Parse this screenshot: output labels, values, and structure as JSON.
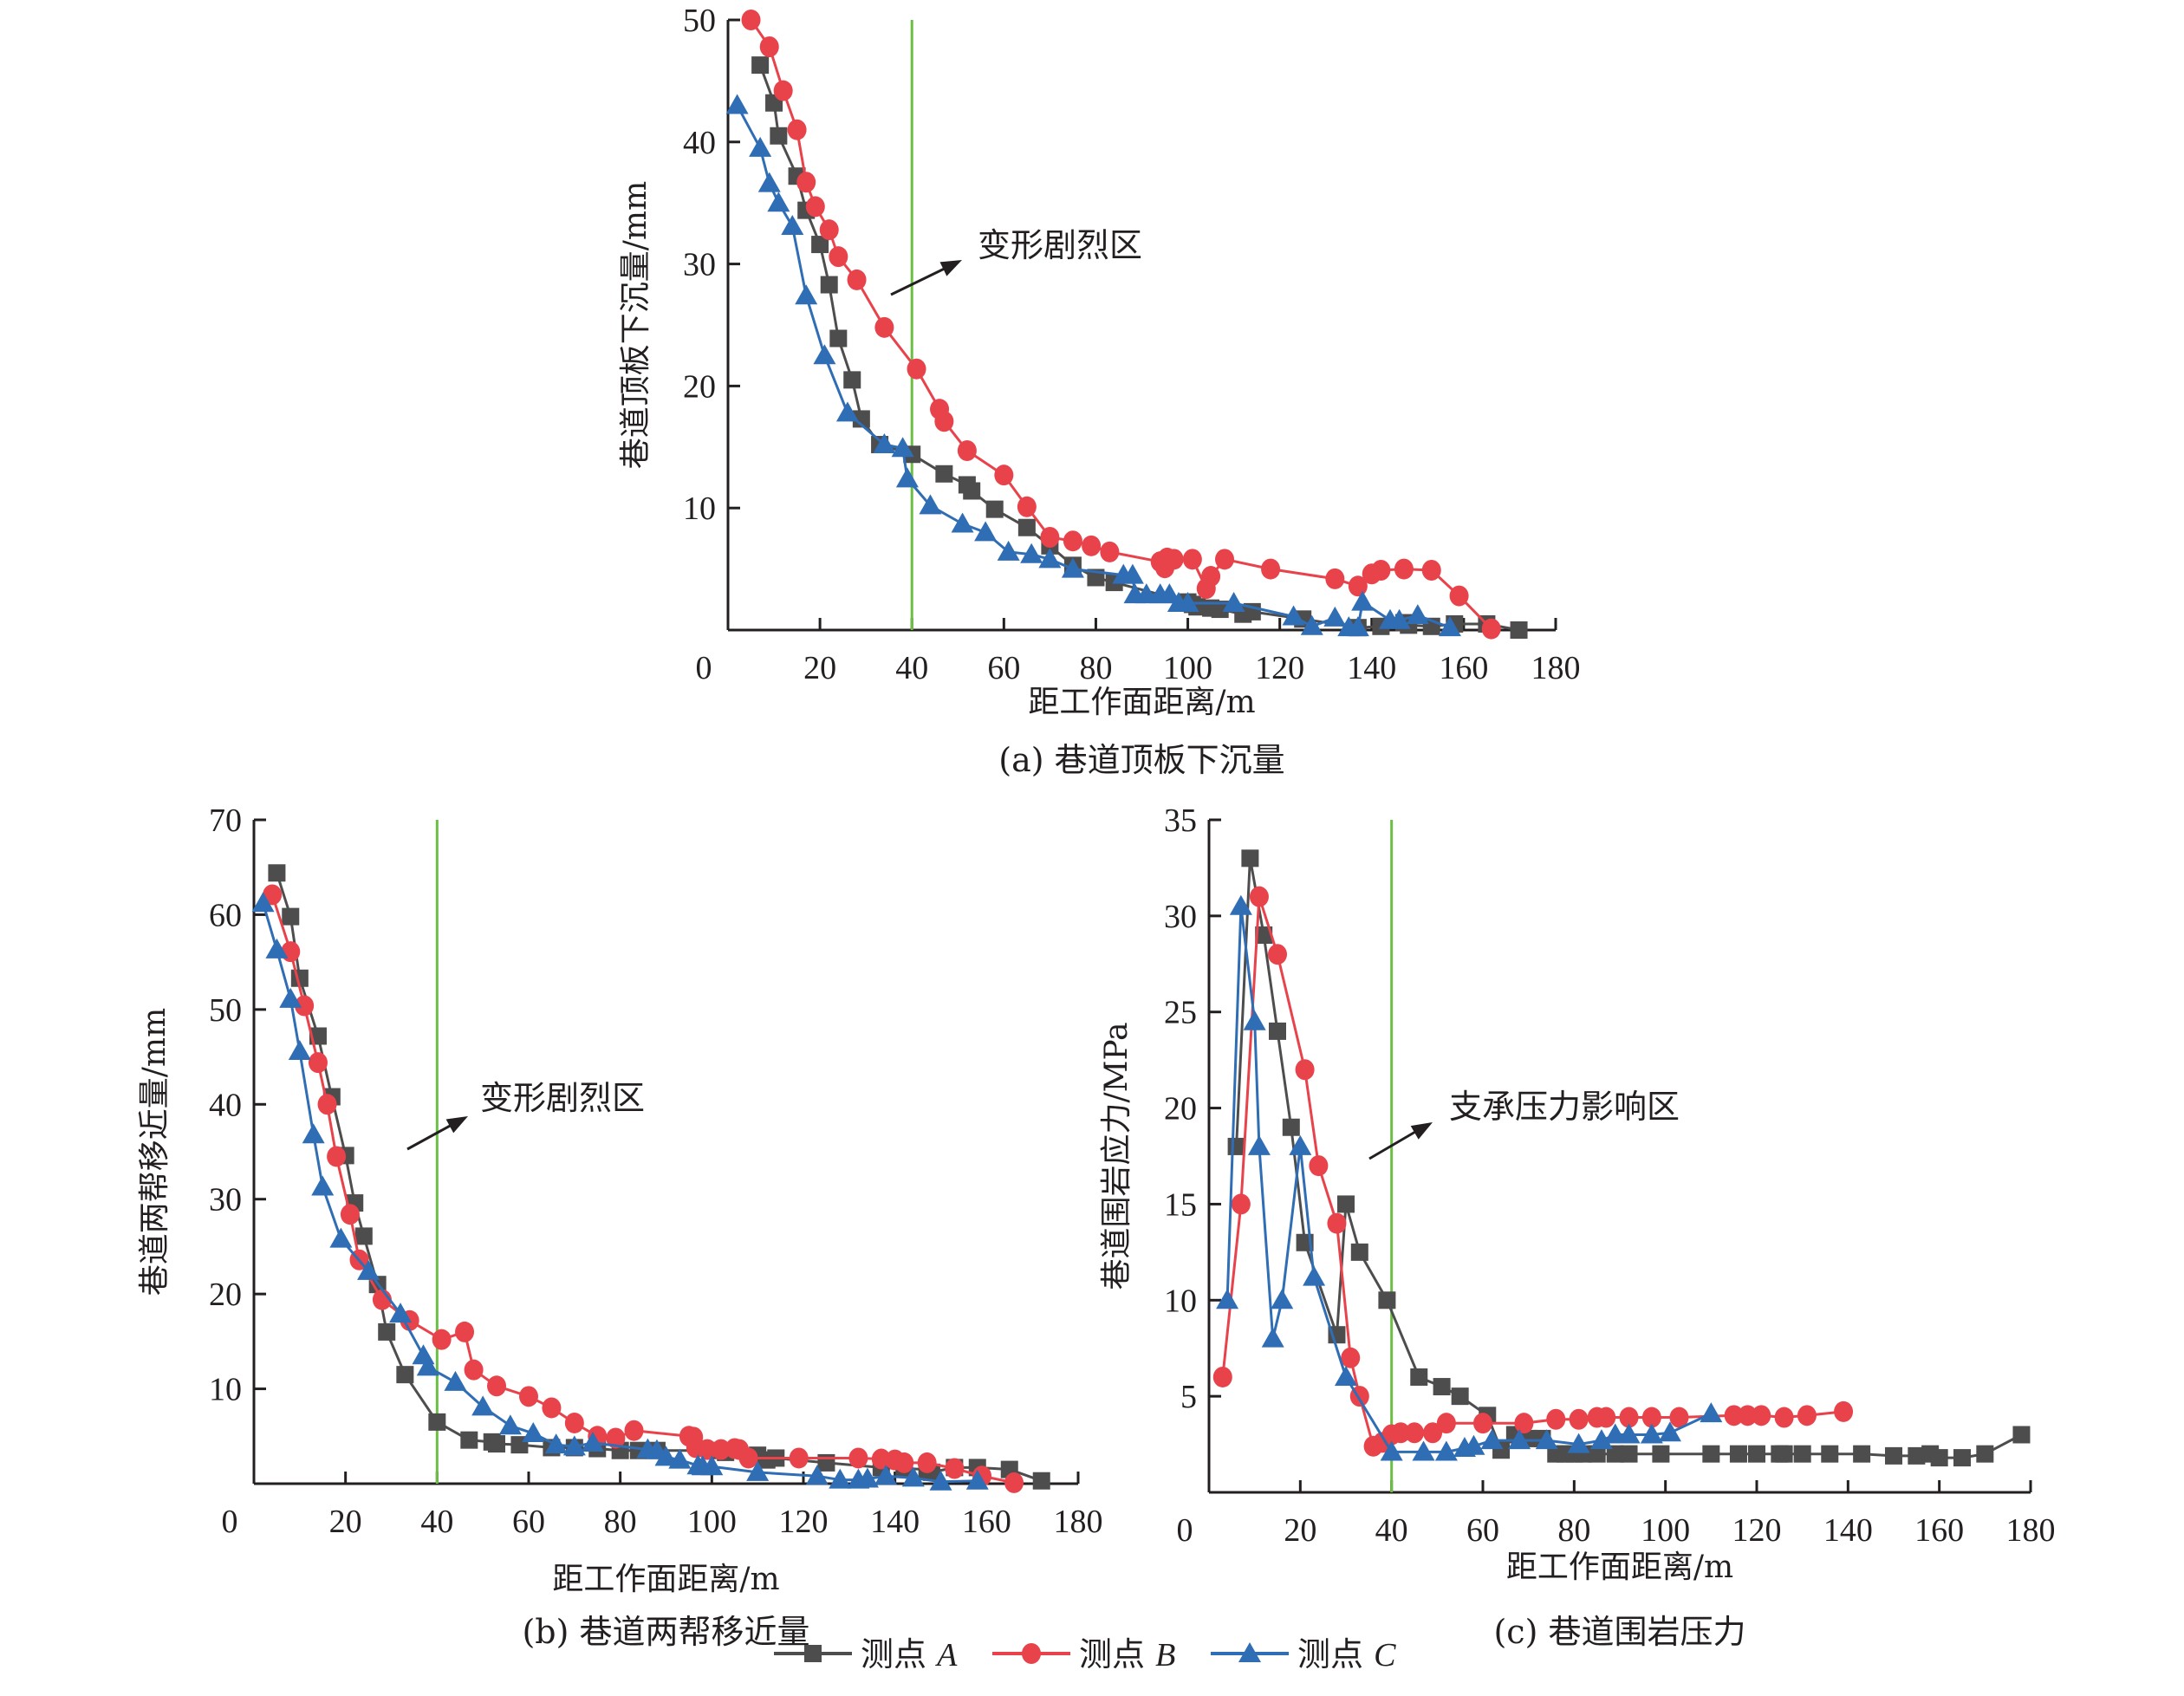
{
  "legend": {
    "items": [
      {
        "label": "测点 ",
        "suffix": "A",
        "color": "#4d4d4d",
        "marker": "square"
      },
      {
        "label": "测点 ",
        "suffix": "B",
        "color": "#e8424b",
        "marker": "circle"
      },
      {
        "label": "测点 ",
        "suffix": "C",
        "color": "#2f6db5",
        "marker": "triangle"
      }
    ]
  },
  "colors": {
    "A": "#4d4d4d",
    "B": "#e8424b",
    "C": "#2f6db5",
    "zone_line": "#6cbf45",
    "axis": "#231f20"
  },
  "chart_data": [
    {
      "id": "a",
      "type": "line",
      "caption": "(a) 巷道顶板下沉量",
      "xlabel": "距工作面距离/m",
      "ylabel": "巷道顶板下沉量/mm",
      "xlim": [
        0,
        180
      ],
      "ylim": [
        0,
        50
      ],
      "xticks": [
        0,
        20,
        40,
        60,
        80,
        100,
        120,
        140,
        160,
        180
      ],
      "yticks": [
        10,
        20,
        30,
        40,
        50
      ],
      "zone_line_x": 40,
      "annotation": "变形剧烈区",
      "series": [
        {
          "name": "测点A",
          "key": "A",
          "x": [
            7,
            10,
            11,
            15,
            17,
            20,
            22,
            24,
            27,
            29,
            33,
            40,
            47,
            52,
            53,
            58,
            65,
            70,
            75,
            80,
            84,
            100,
            101,
            102,
            105,
            107,
            112,
            114,
            125,
            137,
            142,
            147,
            148,
            153,
            158,
            165,
            172
          ],
          "y": [
            46.3,
            43.2,
            40.5,
            37.2,
            34.4,
            31.6,
            28.3,
            23.9,
            20.5,
            17.3,
            15.2,
            14.4,
            12.8,
            11.9,
            11.4,
            9.9,
            8.4,
            6.9,
            5.3,
            4.3,
            3.9,
            2.3,
            2.1,
            1.9,
            1.8,
            1.7,
            1.3,
            1.5,
            0.9,
            0.2,
            0.3,
            0.6,
            0.4,
            0.3,
            0.5,
            0.5,
            0.0
          ]
        },
        {
          "name": "测点B",
          "key": "B",
          "x": [
            5,
            9,
            12,
            15,
            17,
            19,
            22,
            24,
            28,
            34,
            41,
            46,
            47,
            52,
            60,
            65,
            70,
            75,
            79,
            83,
            94,
            95,
            95.5,
            97,
            101,
            104,
            105,
            108,
            118,
            132,
            137,
            140,
            142,
            147,
            153,
            159,
            166
          ],
          "y": [
            50,
            47.8,
            44.2,
            41.0,
            36.7,
            34.7,
            32.8,
            30.6,
            28.7,
            24.8,
            21.4,
            18.1,
            17.1,
            14.7,
            12.7,
            10.1,
            7.6,
            7.3,
            6.9,
            6.4,
            5.6,
            5.1,
            5.9,
            5.8,
            5.8,
            3.4,
            4.4,
            5.8,
            5.0,
            4.2,
            3.6,
            4.6,
            4.9,
            5.0,
            4.9,
            2.8,
            0.1
          ]
        },
        {
          "name": "测点C",
          "key": "C",
          "x": [
            2,
            7,
            9,
            11,
            14,
            17,
            21,
            26,
            34,
            38,
            39,
            44,
            51,
            56,
            61,
            66,
            70,
            75,
            86,
            88,
            88.5,
            91,
            94,
            96,
            98,
            100,
            110,
            123,
            127,
            132,
            135,
            137,
            138,
            144,
            146,
            150,
            157
          ],
          "y": [
            43.0,
            39.5,
            36.6,
            35.0,
            33.1,
            27.4,
            22.5,
            17.8,
            15.2,
            14.9,
            12.4,
            10.2,
            8.7,
            8.0,
            6.4,
            6.2,
            5.8,
            5.0,
            4.5,
            4.5,
            2.9,
            2.9,
            2.9,
            2.9,
            2.2,
            2.2,
            2.2,
            1.1,
            0.3,
            1.0,
            0.2,
            0.2,
            2.3,
            0.8,
            0.8,
            1.2,
            0.2
          ]
        }
      ]
    },
    {
      "id": "b",
      "type": "line",
      "caption": "(b) 巷道两帮移近量",
      "xlabel": "距工作面距离/m",
      "ylabel": "巷道两帮移近量/mm",
      "xlim": [
        0,
        180
      ],
      "ylim": [
        0,
        70
      ],
      "xticks": [
        0,
        20,
        40,
        60,
        80,
        100,
        120,
        140,
        160,
        180
      ],
      "yticks": [
        10,
        20,
        30,
        40,
        50,
        60,
        70
      ],
      "zone_line_x": 40,
      "annotation": "变形剧烈区",
      "series": [
        {
          "name": "测点A",
          "key": "A",
          "x": [
            5,
            8,
            10,
            14,
            17,
            20,
            22,
            24,
            27,
            29,
            33,
            40,
            47,
            52,
            53,
            58,
            65,
            70,
            75,
            80,
            84,
            88,
            100,
            103,
            110,
            112,
            114,
            125,
            137,
            142,
            147,
            148,
            153,
            158,
            165,
            172
          ],
          "y": [
            64.4,
            59.8,
            53.3,
            47.2,
            40.8,
            34.6,
            29.6,
            26.1,
            21.0,
            16.0,
            11.5,
            6.5,
            4.6,
            4.4,
            4.2,
            4.1,
            3.8,
            3.8,
            3.7,
            3.5,
            3.5,
            3.5,
            3.5,
            3.3,
            3.0,
            2.5,
            2.7,
            2.2,
            1.7,
            1.6,
            1.5,
            1.2,
            1.7,
            1.7,
            1.5,
            0.3
          ]
        },
        {
          "name": "测点B",
          "key": "B",
          "x": [
            4,
            8,
            11,
            14,
            16,
            18,
            21,
            23,
            28,
            34,
            41,
            46,
            48,
            53,
            60,
            65,
            70,
            75,
            79,
            83,
            95,
            96,
            96.5,
            99,
            102,
            105,
            106,
            108,
            119,
            132,
            137,
            140,
            142,
            147,
            153,
            159,
            166
          ],
          "y": [
            62.1,
            56.1,
            50.4,
            44.4,
            40.0,
            34.5,
            28.4,
            23.6,
            19.4,
            17.2,
            15.2,
            16.0,
            12.0,
            10.3,
            9.2,
            8.0,
            6.4,
            5.0,
            4.8,
            5.6,
            5.0,
            4.9,
            3.8,
            3.6,
            3.6,
            3.7,
            3.6,
            2.7,
            2.7,
            2.7,
            2.6,
            2.5,
            2.2,
            2.2,
            1.6,
            0.8,
            0.1
          ]
        },
        {
          "name": "测点C",
          "key": "C",
          "x": [
            2,
            5,
            8,
            10,
            13,
            15,
            19,
            25,
            32,
            37,
            38,
            44,
            50,
            56,
            61,
            66,
            70,
            74,
            86,
            88,
            90,
            93,
            97,
            98,
            100,
            110,
            123,
            128,
            132,
            134,
            138,
            144,
            150,
            158
          ],
          "y": [
            61.2,
            56.3,
            51.1,
            45.6,
            36.8,
            31.3,
            25.8,
            22.4,
            17.9,
            13.5,
            12.3,
            10.7,
            8.1,
            6.1,
            5.3,
            4.1,
            3.9,
            4.3,
            3.6,
            3.5,
            2.8,
            2.5,
            1.9,
            1.8,
            1.8,
            1.2,
            0.8,
            0.4,
            0.4,
            0.5,
            0.8,
            0.6,
            0.2,
            0.3
          ]
        }
      ]
    },
    {
      "id": "c",
      "type": "line",
      "caption": "(c) 巷道围岩压力",
      "xlabel": "距工作面距离/m",
      "ylabel": "巷道围岩应力/MPa",
      "xlim": [
        0,
        180
      ],
      "ylim": [
        0,
        35
      ],
      "xticks": [
        0,
        20,
        40,
        60,
        80,
        100,
        120,
        140,
        160,
        180
      ],
      "yticks": [
        5,
        10,
        15,
        20,
        25,
        30,
        35
      ],
      "zone_line_x": 40,
      "annotation": "支承压力影响区",
      "series": [
        {
          "name": "测点A",
          "key": "A",
          "x": [
            6,
            9,
            12,
            15,
            18,
            21,
            28,
            30,
            33,
            39,
            46,
            51,
            55,
            61,
            64,
            67,
            70,
            73,
            76,
            78,
            80,
            82,
            85,
            89,
            92,
            99,
            110,
            116,
            120,
            125,
            126,
            130,
            136,
            143,
            150,
            155,
            158,
            160,
            165,
            170,
            178
          ],
          "y": [
            18,
            33,
            29,
            24,
            19,
            13,
            8.2,
            15,
            12.5,
            10,
            6,
            5.5,
            5,
            4,
            2.2,
            3,
            2.8,
            2.8,
            2,
            2,
            2,
            2,
            2,
            2,
            2,
            2,
            2,
            2,
            2,
            2,
            2,
            2,
            2,
            2,
            1.9,
            1.9,
            2,
            1.8,
            1.8,
            2,
            3
          ]
        },
        {
          "name": "测点B",
          "key": "B",
          "x": [
            3,
            7,
            11,
            15,
            21,
            24,
            28,
            31,
            33,
            36,
            38,
            40,
            42,
            45,
            49,
            52,
            60,
            69,
            76,
            81,
            85,
            87,
            92,
            97,
            103,
            115,
            118,
            121,
            126,
            131,
            139
          ],
          "y": [
            6,
            15,
            31,
            28,
            22,
            17,
            14,
            7,
            5,
            2.4,
            2.6,
            3,
            3.1,
            3.1,
            3.1,
            3.6,
            3.6,
            3.6,
            3.8,
            3.8,
            3.9,
            3.9,
            3.9,
            3.9,
            3.9,
            4,
            4,
            4,
            3.9,
            4,
            4.2
          ]
        },
        {
          "name": "测点C",
          "key": "C",
          "x": [
            4,
            7,
            10,
            11,
            14,
            16,
            20,
            23,
            30,
            40,
            47,
            52,
            56,
            58,
            62,
            68,
            74,
            81,
            86,
            89,
            92,
            97,
            101,
            110
          ],
          "y": [
            10,
            30.5,
            24.5,
            18,
            8,
            10,
            18,
            11.2,
            6,
            2.1,
            2.1,
            2.1,
            2.3,
            2.4,
            2.7,
            2.7,
            2.7,
            2.5,
            2.7,
            3,
            3,
            3,
            3.1,
            4.1
          ]
        }
      ]
    }
  ]
}
